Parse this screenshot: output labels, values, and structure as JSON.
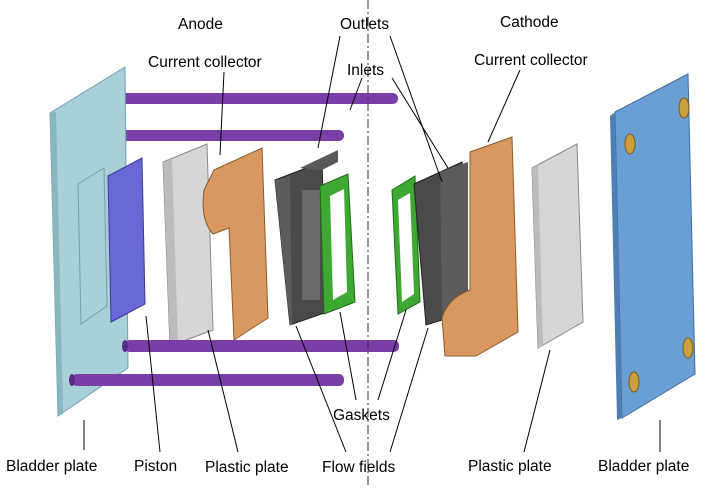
{
  "labels": {
    "anode": "Anode",
    "cathode": "Cathode",
    "current_collector_left": "Current collector",
    "current_collector_right": "Current collector",
    "outlets": "Outlets",
    "inlets": "Inlets",
    "gaskets": "Gaskets",
    "bladder_plate_left": "Bladder plate",
    "bladder_plate_right": "Bladder plate",
    "piston": "Piston",
    "plastic_plate_left": "Plastic plate",
    "plastic_plate_right": "Plastic plate",
    "flow_fields": "Flow fields"
  },
  "colors": {
    "bladder_plate": "#6a9fd6",
    "bladder_plate_clear": "#a9cfd8",
    "rod": "#7a3ea8",
    "piston": "#6a67d6",
    "plastic_plate": "#d6d6d6",
    "current_collector": "#d9985f",
    "flow_field": "#4a4a4a",
    "gasket": "#3fa832",
    "bolt": "#c8a040"
  }
}
